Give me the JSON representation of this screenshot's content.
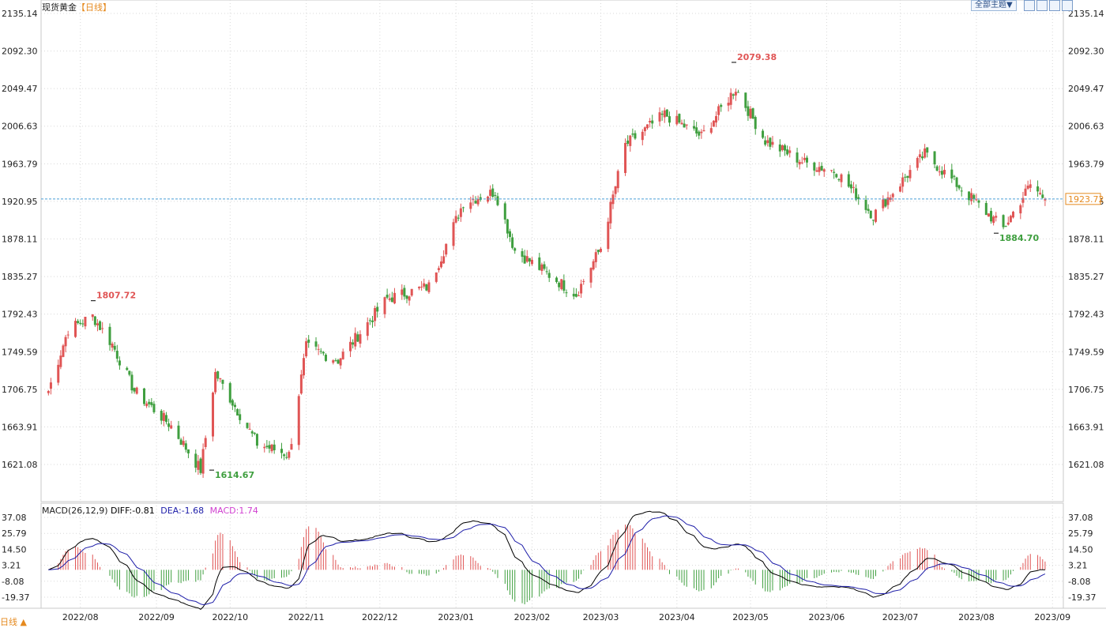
{
  "header": {
    "symbol": "现货黄金",
    "timeframe": "【日线】",
    "theme_label": "全部主题▼",
    "bottom_timeframe": "日线 ▲"
  },
  "colors": {
    "up": "#e05555",
    "down": "#3f9f3f",
    "grid": "#d8d8d8",
    "price_line": "#4a9fd8",
    "diff": "#000000",
    "dea": "#1c1ca8",
    "macd_hist_label": "#d040d0"
  },
  "chart_data": [
    {
      "type": "candlestick",
      "title": "现货黄金【日线】",
      "y_ticks": [
        "2135.14",
        "2092.30",
        "2049.47",
        "2006.63",
        "1963.79",
        "1920.95",
        "1878.11",
        "1835.27",
        "1792.43",
        "1749.59",
        "1706.75",
        "1663.91",
        "1621.08"
      ],
      "ylim": [
        1621.08,
        2135.14
      ],
      "x_ticks": [
        "2022/08",
        "2022/09",
        "2022/10",
        "2022/11",
        "2022/12",
        "2023/01",
        "2023/02",
        "2023/03",
        "2023/04",
        "2023/05",
        "2023/06",
        "2023/07",
        "2023/08",
        "2023/09"
      ],
      "current_price": "1923.72",
      "annotations": [
        {
          "label": "1807.72",
          "kind": "high",
          "date": "2022/08"
        },
        {
          "label": "1614.67",
          "kind": "low",
          "date": "2022/09"
        },
        {
          "label": "2079.38",
          "kind": "high",
          "date": "2023/05"
        },
        {
          "label": "1884.70",
          "kind": "low",
          "date": "2023/08"
        }
      ],
      "key_closes": [
        [
          "2022/07/28",
          1705
        ],
        [
          "2022/08/05",
          1775
        ],
        [
          "2022/08/15",
          1790
        ],
        [
          "2022/08/23",
          1758
        ],
        [
          "2022/09/01",
          1705
        ],
        [
          "2022/09/16",
          1665
        ],
        [
          "2022/09/28",
          1615
        ],
        [
          "2022/10/04",
          1725
        ],
        [
          "2022/10/21",
          1645
        ],
        [
          "2022/11/03",
          1632
        ],
        [
          "2022/11/10",
          1755
        ],
        [
          "2022/11/23",
          1740
        ],
        [
          "2022/12/13",
          1810
        ],
        [
          "2022/12/30",
          1824
        ],
        [
          "2023/01/13",
          1920
        ],
        [
          "2023/01/26",
          1932
        ],
        [
          "2023/02/03",
          1865
        ],
        [
          "2023/02/28",
          1815
        ],
        [
          "2023/03/10",
          1868
        ],
        [
          "2023/03/20",
          1985
        ],
        [
          "2023/04/05",
          2020
        ],
        [
          "2023/04/20",
          1995
        ],
        [
          "2023/05/04",
          2050
        ],
        [
          "2023/05/16",
          1990
        ],
        [
          "2023/06/01",
          1965
        ],
        [
          "2023/06/14",
          1955
        ],
        [
          "2023/06/29",
          1905
        ],
        [
          "2023/07/20",
          1975
        ],
        [
          "2023/08/21",
          1890
        ],
        [
          "2023/09/01",
          1940
        ],
        [
          "2023/09/07",
          1923.72
        ]
      ]
    },
    {
      "type": "macd",
      "legend": {
        "name": "MACD(26,12,9)",
        "diff": "DIFF:-0.81",
        "dea": "DEA:-1.68",
        "macd": "MACD:1.74"
      },
      "y_ticks": [
        "37.08",
        "25.79",
        "14.50",
        "3.21",
        "-8.08",
        "-19.37"
      ],
      "ylim": [
        -19.37,
        37.08
      ]
    }
  ]
}
